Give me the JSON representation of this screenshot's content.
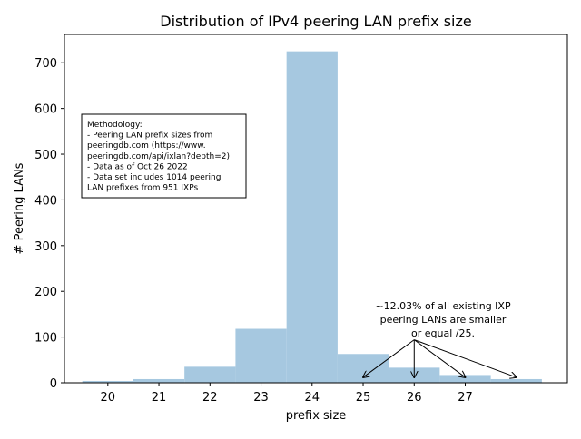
{
  "chart_data": {
    "type": "bar",
    "title": "Distribution of IPv4 peering LAN prefix size",
    "xlabel": "prefix size",
    "ylabel": "# Peering LANs",
    "x_tick_labels": [
      "20",
      "21",
      "22",
      "23",
      "24",
      "25",
      "26",
      "27"
    ],
    "x_ticks": [
      20,
      21,
      22,
      23,
      24,
      25,
      26,
      27
    ],
    "xlim": [
      19.15,
      29.0
    ],
    "ylim": [
      0,
      762
    ],
    "y_ticks": [
      0,
      100,
      200,
      300,
      400,
      500,
      600,
      700
    ],
    "y_tick_labels": [
      "0",
      "100",
      "200",
      "300",
      "400",
      "500",
      "600",
      "700"
    ],
    "bar_color": "#a6c8e0",
    "categories": [
      20,
      21,
      22,
      23,
      24,
      25,
      26,
      27,
      28
    ],
    "values": [
      4,
      8,
      35,
      118,
      725,
      63,
      33,
      17,
      8
    ],
    "methodology": {
      "lines": [
        "Methodology:",
        "- Peering LAN prefix sizes from",
        "peeringdb.com (https://www.",
        "peeringdb.com/api/ixlan?depth=2)",
        "- Data as of Oct 26 2022",
        "- Data set includes 1014 peering",
        "LAN prefixes from 951 IXPs"
      ]
    },
    "annotation": {
      "lines": [
        "~12.03% of all existing IXP",
        "peering LANs are smaller",
        "or equal /25."
      ],
      "arrow_source": [
        26.0,
        90
      ],
      "arrow_targets": [
        [
          25.0,
          12
        ],
        [
          26.0,
          12
        ],
        [
          27.0,
          12
        ],
        [
          28.0,
          12
        ]
      ]
    }
  }
}
